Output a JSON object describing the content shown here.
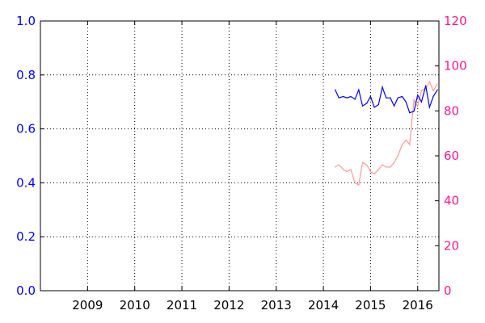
{
  "chart_data": {
    "type": "line",
    "title": "",
    "xlabel": "",
    "ylabel": "",
    "ylabel_right": "",
    "grid": true,
    "xlim": [
      2008.0,
      2016.45
    ],
    "ylim": [
      0.0,
      1.0
    ],
    "ylim_right": [
      0,
      120
    ],
    "x_ticks": [
      "2009",
      "2010",
      "2011",
      "2012",
      "2013",
      "2014",
      "2015",
      "2016"
    ],
    "y_ticks_left": [
      "0.0",
      "0.2",
      "0.4",
      "0.6",
      "0.8",
      "1.0"
    ],
    "y_ticks_right": [
      "0",
      "20",
      "40",
      "60",
      "80",
      "100",
      "120"
    ],
    "colors": {
      "left_series": "#0000ff",
      "right_series": "#ff9999",
      "left_axis": "#0000ff",
      "right_axis": "#ff1493",
      "grid": "#000000"
    },
    "series": [
      {
        "axis": "left",
        "x": [
          2014.25,
          2014.33,
          2014.42,
          2014.5,
          2014.58,
          2014.67,
          2014.75,
          2014.83,
          2014.92,
          2015.0,
          2015.08,
          2015.17,
          2015.25,
          2015.33,
          2015.42,
          2015.5,
          2015.58,
          2015.67,
          2015.75,
          2015.83,
          2015.92,
          2016.0,
          2016.08,
          2016.17,
          2016.25,
          2016.33,
          2016.42
        ],
        "values": [
          0.745,
          0.715,
          0.72,
          0.715,
          0.72,
          0.71,
          0.745,
          0.685,
          0.695,
          0.72,
          0.68,
          0.69,
          0.755,
          0.715,
          0.715,
          0.685,
          0.715,
          0.72,
          0.7,
          0.66,
          0.665,
          0.725,
          0.7,
          0.76,
          0.68,
          0.72,
          0.745
        ]
      },
      {
        "axis": "right",
        "x": [
          2014.25,
          2014.33,
          2014.42,
          2014.5,
          2014.58,
          2014.67,
          2014.75,
          2014.83,
          2014.92,
          2015.0,
          2015.08,
          2015.17,
          2015.25,
          2015.33,
          2015.42,
          2015.5,
          2015.58,
          2015.67,
          2015.75,
          2015.83,
          2015.92,
          2016.0,
          2016.08,
          2016.17,
          2016.25,
          2016.33,
          2016.42
        ],
        "values": [
          55,
          56,
          54,
          53,
          54,
          48,
          47,
          57,
          56,
          53,
          52,
          54,
          56,
          55,
          55,
          57,
          60,
          65,
          67,
          65,
          85,
          82,
          89,
          90,
          93,
          89,
          92
        ]
      }
    ]
  }
}
